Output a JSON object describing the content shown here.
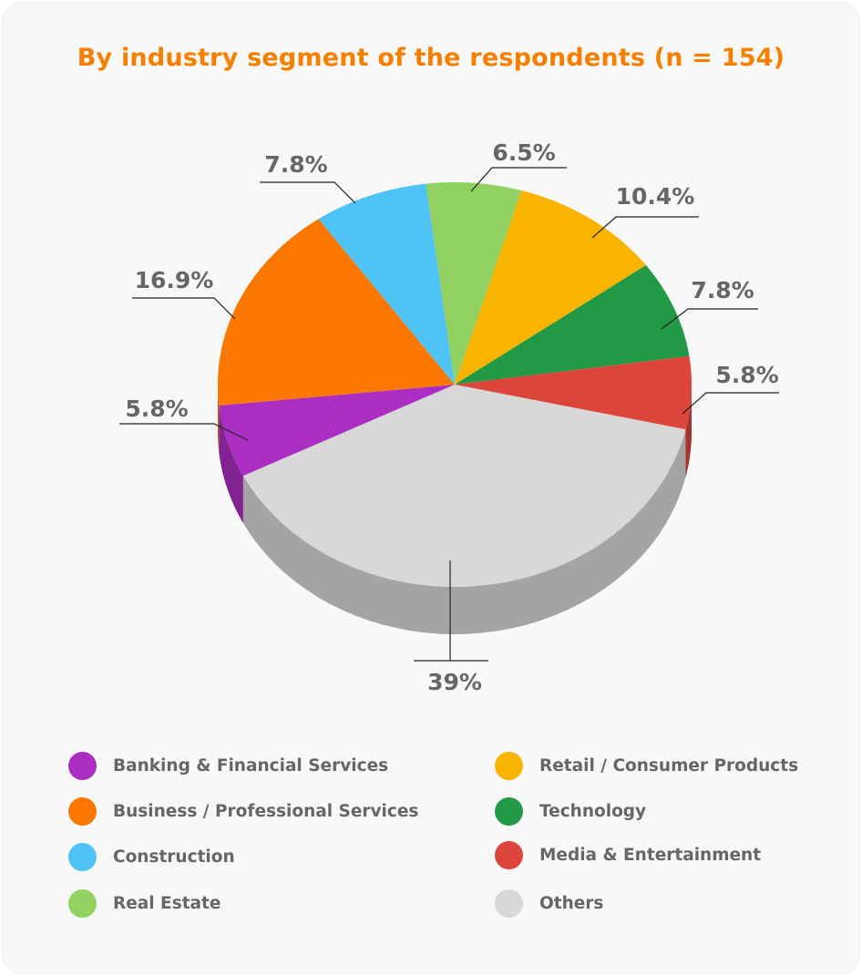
{
  "chart_data": {
    "type": "pie",
    "style": "3d",
    "title": "By industry segment of the respondents (n = 154)",
    "slices": [
      {
        "name": "Real Estate",
        "value": 6.5,
        "label": "6.5%",
        "color": "#91d162"
      },
      {
        "name": "Retail / Consumer Products",
        "value": 10.4,
        "label": "10.4%",
        "color": "#f9b400"
      },
      {
        "name": "Technology",
        "value": 7.8,
        "label": "7.8%",
        "color": "#229944"
      },
      {
        "name": "Media & Entertainment",
        "value": 5.8,
        "label": "5.8%",
        "color": "#dc4539"
      },
      {
        "name": "Others",
        "value": 39,
        "label": "39%",
        "color": "#d8d8d8"
      },
      {
        "name": "Banking & Financial Services",
        "value": 5.8,
        "label": "5.8%",
        "color": "#ab2ec2"
      },
      {
        "name": "Business / Professional Services",
        "value": 16.9,
        "label": "16.9%",
        "color": "#fb7700"
      },
      {
        "name": "Construction",
        "value": 7.8,
        "label": "7.8%",
        "color": "#4fc3f5"
      }
    ],
    "legend": [
      {
        "label": "Banking & Financial Services",
        "color": "#ab2ec2"
      },
      {
        "label": "Business / Professional Services",
        "color": "#fb7700"
      },
      {
        "label": "Construction",
        "color": "#4fc3f5"
      },
      {
        "label": "Real Estate",
        "color": "#91d162"
      },
      {
        "label": "Retail / Consumer Products",
        "color": "#f9b400"
      },
      {
        "label": "Technology",
        "color": "#229944"
      },
      {
        "label": "Media & Entertainment",
        "color": "#dc4539"
      },
      {
        "label": "Others",
        "color": "#d8d8d8"
      }
    ],
    "legend_position": "bottom"
  }
}
